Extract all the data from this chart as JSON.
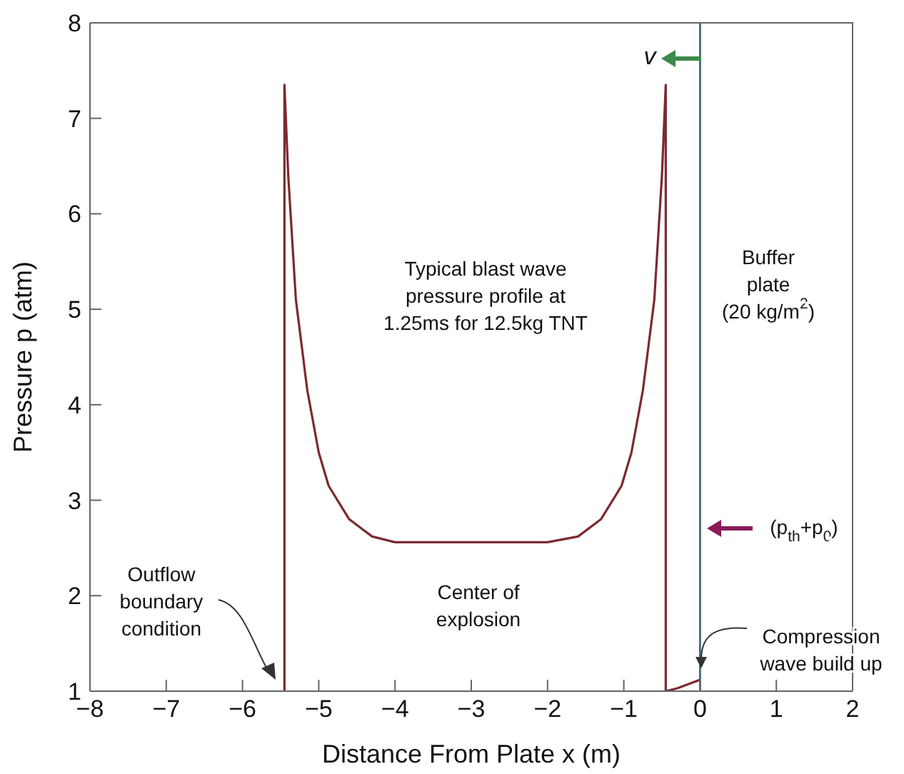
{
  "chart_data": {
    "type": "line",
    "xlabel": "Distance From Plate  x  (m)",
    "ylabel": "Pressure  p  (atm)",
    "xlim": [
      -8,
      2
    ],
    "xticks": [
      -8,
      -7,
      -6,
      -5,
      -4,
      -3,
      -2,
      -1,
      0,
      1,
      2
    ],
    "ylim": [
      1,
      8
    ],
    "yticks": [
      1,
      2,
      3,
      4,
      5,
      6,
      7,
      8
    ],
    "grid": false,
    "legend": false,
    "marker": "none",
    "line_style": "solid",
    "series": [
      {
        "color": "#7b2a30",
        "x": [
          -5.45,
          -5.45,
          -5.4,
          -5.3,
          -5.15,
          -5.0,
          -4.87,
          -4.6,
          -4.3,
          -4.0,
          -2.0,
          -1.6,
          -1.3,
          -1.03,
          -0.9,
          -0.75,
          -0.6,
          -0.5,
          -0.45,
          -0.45,
          -0.3,
          0
        ],
        "values": [
          1,
          7.35,
          6.4,
          5.1,
          4.15,
          3.5,
          3.15,
          2.8,
          2.62,
          2.56,
          2.56,
          2.62,
          2.8,
          3.15,
          3.5,
          4.15,
          5.1,
          6.4,
          7.35,
          1,
          1.03,
          1.12
        ]
      }
    ],
    "ref_lines": [
      {
        "axis": "x",
        "value": 0,
        "color": "#3f6b7a"
      }
    ],
    "annotations": [
      "v",
      "Typical blast wave\npressure profile at\n1.25ms for 12.5kg TNT",
      "Buffer\nplate\n(20 kg/m$^{2}$)",
      "(p$_{th}$+p$_{0}$)",
      "Center of\nexplosion",
      "Outflow\nboundary\ncondition",
      "Compression\nwave build up"
    ]
  }
}
